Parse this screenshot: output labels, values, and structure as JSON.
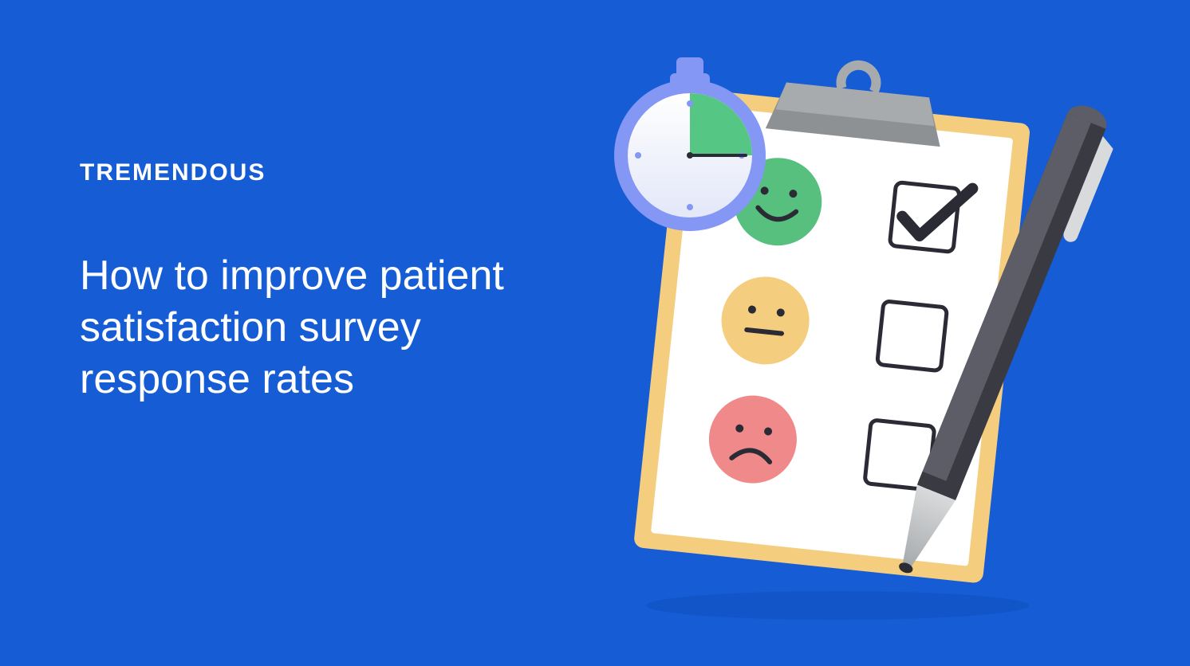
{
  "background_color": "#155CD5",
  "brand": {
    "label": "TREMENDOUS",
    "color": "#ffffff",
    "fontsize": 30,
    "weight": 800,
    "letter_spacing": 2
  },
  "headline": {
    "text": "How to improve patient satisfaction survey response rates",
    "color": "#ffffff",
    "fontsize": 52,
    "weight": 500,
    "line_height": 1.25
  },
  "illustration": {
    "type": "infographic",
    "clipboard": {
      "board_fill": "#F5CD7E",
      "board_stroke": "none",
      "paper_fill": "#ffffff",
      "clip_fill": "#A8ABAD",
      "clip_shadow": "#8E9193",
      "rotation_deg": 6,
      "rows": [
        {
          "face": "happy",
          "face_fill": "#57C07F",
          "checked": true
        },
        {
          "face": "neutral",
          "face_fill": "#F5CD7E",
          "checked": false
        },
        {
          "face": "sad",
          "face_fill": "#F08A8A",
          "checked": false
        }
      ],
      "face_stroke": "#2B2B36",
      "checkbox_stroke": "#2B2B36",
      "checkbox_stroke_width": 5,
      "checkbox_fill": "#ffffff",
      "checkmark_color": "#2B2B36",
      "row_spacing": 150,
      "face_radius": 55,
      "checkbox_size": 80
    },
    "stopwatch": {
      "ring_fill": "#8497F5",
      "face_fill_top": "#ffffff",
      "face_fill_bottom": "#E3E7F8",
      "wedge_fill": "#55C684",
      "wedge_start_deg": 270,
      "wedge_end_deg": 360,
      "marker_color": "#8497F5",
      "button_fill": "#8497F5",
      "hand_color": "#2B2B36"
    },
    "pen": {
      "body_fill_light": "#5C5D66",
      "body_fill_dark": "#3A3B42",
      "tip_fill_top": "#D8DADC",
      "tip_fill_bottom": "#A8ABAD",
      "nib_fill": "#2B2B36",
      "clip_fill": "#D8DADC",
      "rotation_deg": 22
    },
    "shadow_color": "#0F4DBA"
  }
}
